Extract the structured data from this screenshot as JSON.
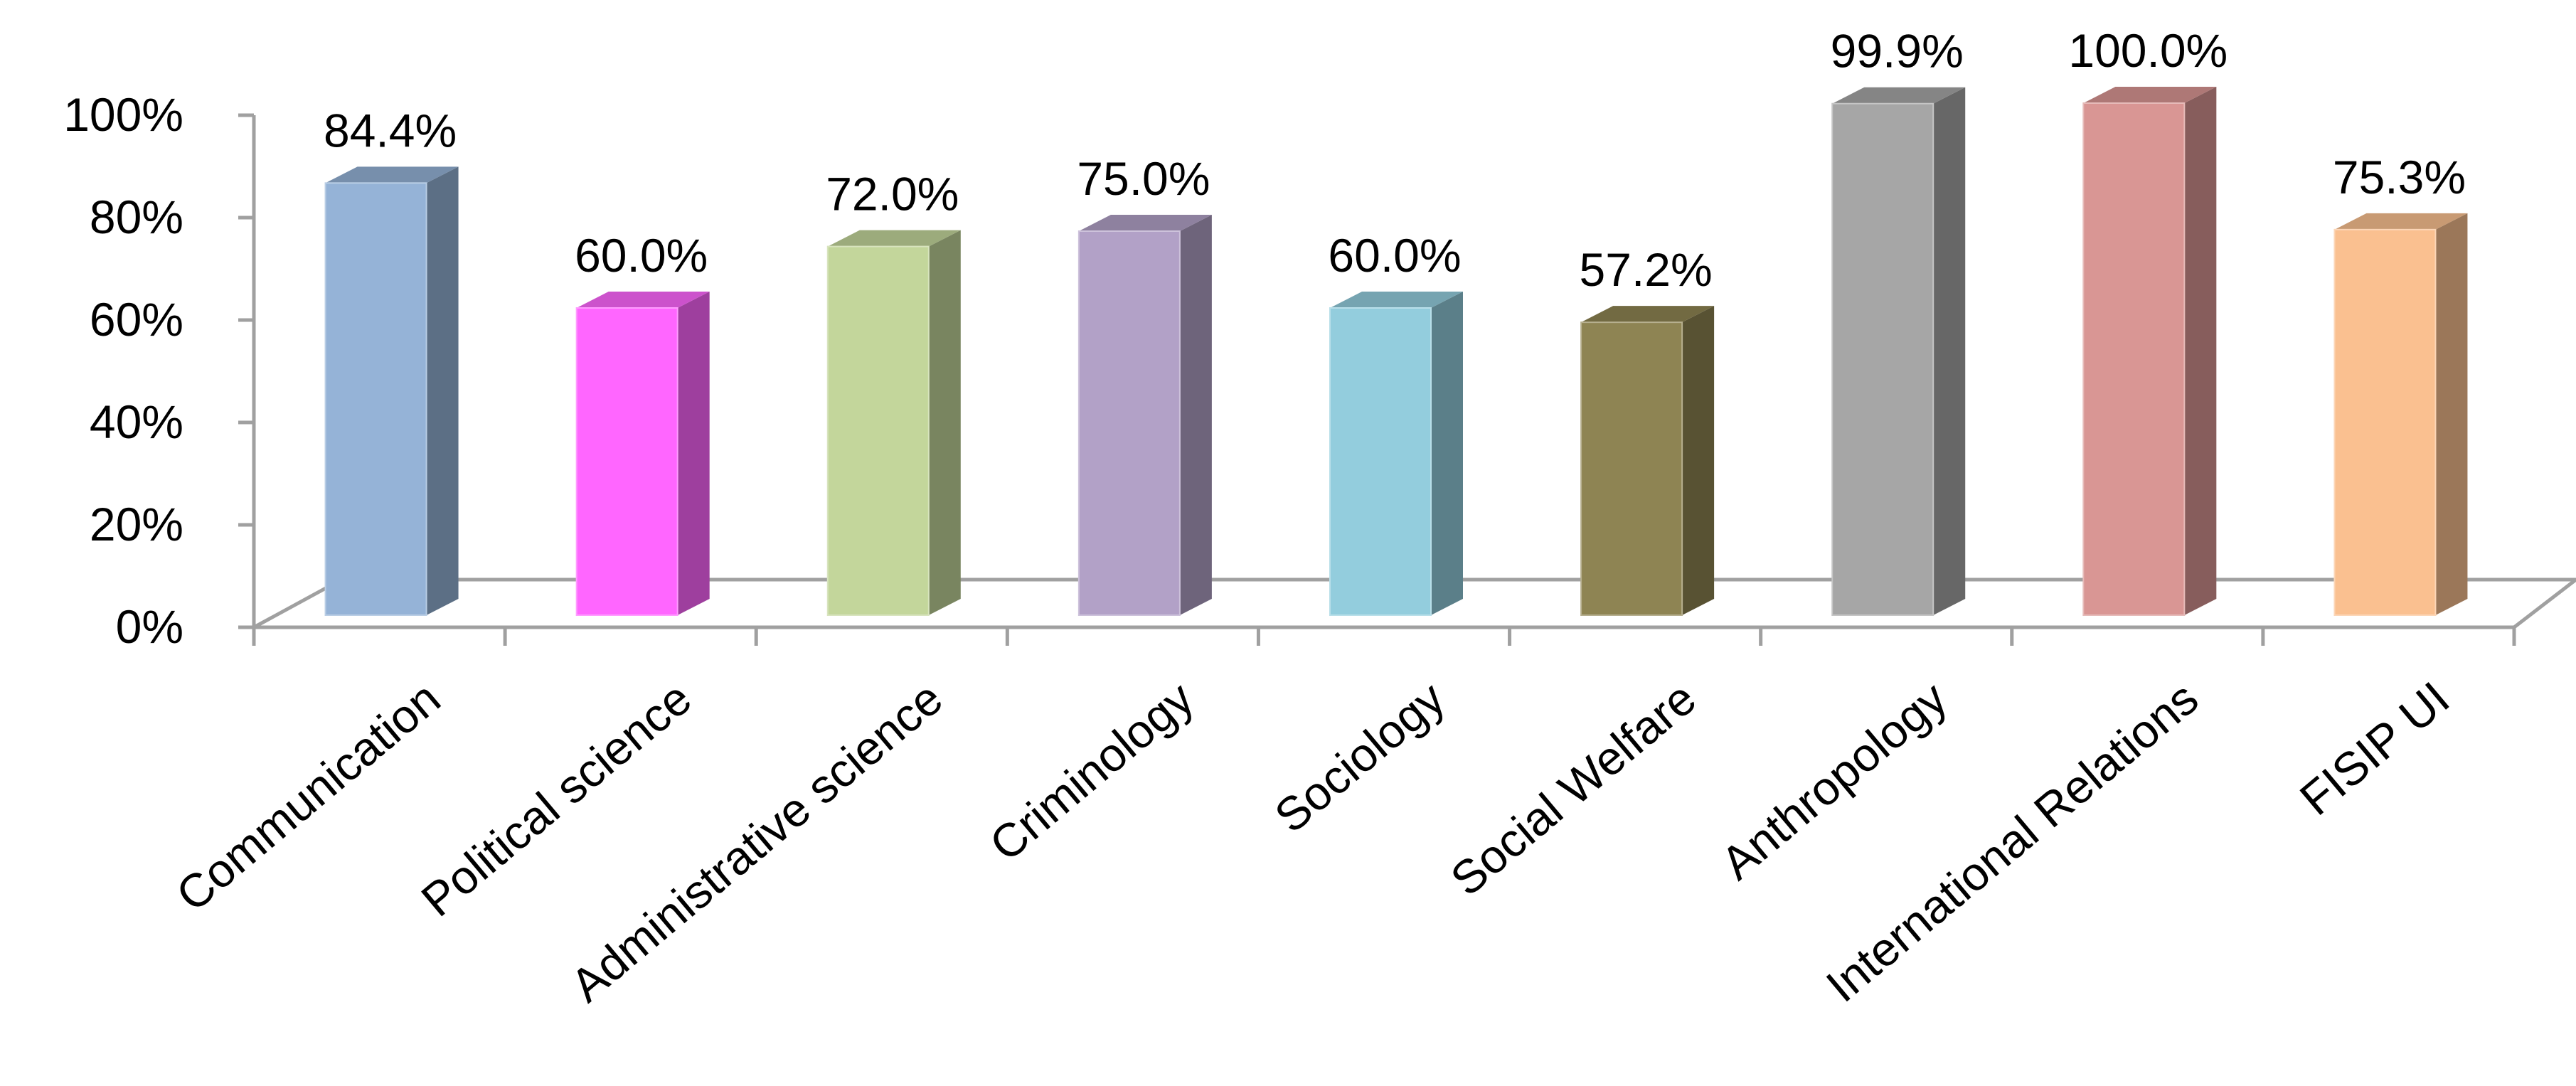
{
  "chart_data": {
    "type": "bar",
    "title": "",
    "xlabel": "",
    "ylabel": "",
    "ylim": [
      0,
      100
    ],
    "y_ticks": [
      "0%",
      "20%",
      "40%",
      "60%",
      "80%",
      "100%"
    ],
    "categories": [
      "Communication",
      "Political science",
      "Administrative science",
      "Criminology",
      "Sociology",
      "Social Welfare",
      "Anthropology",
      "International Relations",
      "FISIP UI"
    ],
    "values": [
      84.4,
      60.0,
      72.0,
      75.0,
      60.0,
      57.2,
      99.9,
      100.0,
      75.3
    ],
    "data_labels": [
      "84.4%",
      "60.0%",
      "72.0%",
      "75.0%",
      "60.0%",
      "57.2%",
      "99.9%",
      "100.0%",
      "75.3%"
    ],
    "colors": [
      "#95b3d7",
      "#ff66ff",
      "#c3d69b",
      "#b2a1c7",
      "#93cddd",
      "#8e8453",
      "#a6a6a6",
      "#d99694",
      "#fac090"
    ],
    "style": "3d-column",
    "legend": "none",
    "grid": false
  }
}
